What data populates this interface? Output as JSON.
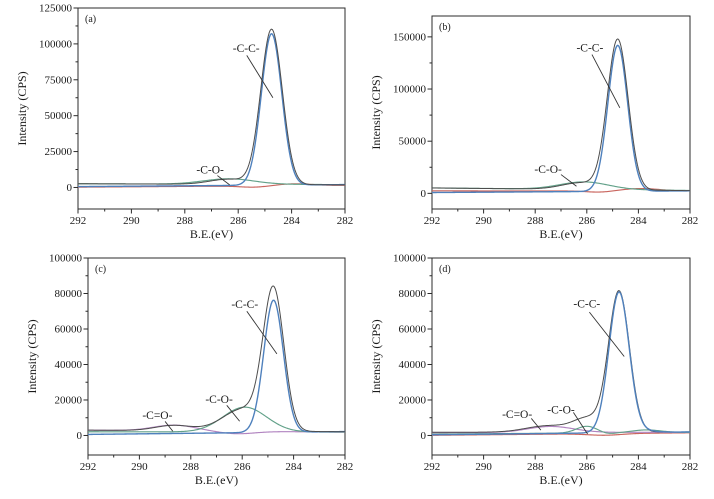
{
  "figure": {
    "background": "#ffffff",
    "axis_color": "#2b2b2b",
    "annotation_line_color": "#333333"
  },
  "axes_common": {
    "xlabel": "B.E.(eV)",
    "ylabel": "Intensity（CPS）",
    "xlim": [
      292,
      282
    ],
    "xticks": [
      292,
      290,
      288,
      286,
      284,
      282
    ],
    "x_minor_step": 1,
    "x_axis_reversed": true
  },
  "chart_data": {
    "type": "line",
    "description": "Four XPS C1s spectra panels (a)-(d): intensity vs binding energy with fitted components. Series curves are linear baseline (left/right values, CPS) plus Gaussian peaks {c: center eV, a: amplitude CPS, w: FWHM eV}.",
    "panels": [
      {
        "id": "a",
        "label": "(a)",
        "ylim": [
          -15000,
          125000
        ],
        "yticks": [
          0,
          25000,
          50000,
          75000,
          100000,
          125000
        ],
        "box": {
          "x1": 78,
          "y1": 8,
          "x2": 345,
          "y2": 209
        },
        "series": [
          {
            "name": "background",
            "color": "#c9655e",
            "base": [
              200,
              1500
            ],
            "peaks": [
              {
                "c": 283.9,
                "a": 1300,
                "w": 1.5
              },
              {
                "c": 285.4,
                "a": -900,
                "w": 1.2
              }
            ]
          },
          {
            "name": "C-O",
            "color": "#62a189",
            "base": [
              2600,
              2000
            ],
            "peaks": [
              {
                "c": 286.35,
                "a": 3800,
                "w": 2.2
              }
            ]
          },
          {
            "name": "C-C",
            "color": "#4f81bd",
            "base": [
              600,
              2000
            ],
            "peaks": [
              {
                "c": 284.75,
                "a": 105500,
                "w": 0.9
              }
            ]
          },
          {
            "name": "envelope",
            "color": "#4d4d4d",
            "base": [
              2600,
              1800
            ],
            "peaks": [
              {
                "c": 286.35,
                "a": 3600,
                "w": 1.7
              },
              {
                "c": 284.75,
                "a": 108000,
                "w": 0.95
              }
            ]
          }
        ],
        "annotations": [
          {
            "text": "-C-C-",
            "x": 285.7,
            "y": 97000,
            "line": [
              285.68,
              92000,
              284.7,
              62500
            ]
          },
          {
            "text": "-C-O-",
            "x": 287.05,
            "y": 12500,
            "line": [
              286.78,
              8300,
              286.32,
              1800
            ]
          }
        ]
      },
      {
        "id": "b",
        "label": "(b)",
        "ylim": [
          -15000,
          170000
        ],
        "yticks": [
          0,
          50000,
          100000,
          150000
        ],
        "box": {
          "x1": 75,
          "y1": 16,
          "x2": 333,
          "y2": 209
        },
        "series": [
          {
            "name": "background",
            "color": "#c9655e",
            "base": [
              2400,
              2200
            ],
            "peaks": [
              {
                "c": 283.9,
                "a": 2400,
                "w": 1.7
              },
              {
                "c": 285.5,
                "a": -1200,
                "w": 1.2
              }
            ]
          },
          {
            "name": "C-O",
            "color": "#62a189",
            "base": [
              5200,
              2800
            ],
            "peaks": [
              {
                "c": 286.1,
                "a": 7200,
                "w": 2.2
              }
            ]
          },
          {
            "name": "C-C",
            "color": "#4f81bd",
            "base": [
              800,
              2400
            ],
            "peaks": [
              {
                "c": 284.8,
                "a": 140000,
                "w": 0.9
              }
            ]
          },
          {
            "name": "envelope",
            "color": "#4d4d4d",
            "base": [
              5200,
              2600
            ],
            "peaks": [
              {
                "c": 286.2,
                "a": 6500,
                "w": 1.8
              },
              {
                "c": 284.8,
                "a": 143500,
                "w": 0.95
              }
            ]
          }
        ],
        "annotations": [
          {
            "text": "-C-C-",
            "x": 285.88,
            "y": 140000,
            "line": [
              285.8,
              133000,
              284.72,
              82000
            ]
          },
          {
            "text": "-C-O-",
            "x": 287.5,
            "y": 23500,
            "line": [
              287.0,
              18000,
              286.4,
              6800
            ]
          }
        ]
      },
      {
        "id": "c",
        "label": "(c)",
        "ylim": [
          -11000,
          100000
        ],
        "yticks": [
          0,
          20000,
          40000,
          60000,
          80000,
          100000
        ],
        "box": {
          "x1": 88,
          "y1": 9,
          "x2": 345,
          "y2": 206
        },
        "series": [
          {
            "name": "C=O",
            "color": "#b184c0",
            "base": [
              3000,
              1900
            ],
            "peaks": [
              {
                "c": 288.65,
                "a": 3200,
                "w": 1.9
              },
              {
                "c": 286.2,
                "a": -1400,
                "w": 1.6
              }
            ]
          },
          {
            "name": "C-O",
            "color": "#62a189",
            "base": [
              2100,
              1900
            ],
            "peaks": [
              {
                "c": 285.9,
                "a": 14000,
                "w": 2.0
              }
            ]
          },
          {
            "name": "C-C",
            "color": "#4f81bd",
            "base": [
              600,
              2200
            ],
            "peaks": [
              {
                "c": 284.78,
                "a": 74500,
                "w": 0.9
              }
            ]
          },
          {
            "name": "envelope",
            "color": "#4d4d4d",
            "base": [
              3000,
              2100
            ],
            "peaks": [
              {
                "c": 288.65,
                "a": 3000,
                "w": 1.7
              },
              {
                "c": 285.95,
                "a": 12500,
                "w": 1.9
              },
              {
                "c": 284.78,
                "a": 77500,
                "w": 0.95
              }
            ]
          }
        ],
        "annotations": [
          {
            "text": "-C-C-",
            "x": 285.9,
            "y": 74000,
            "line": [
              285.82,
              70000,
              284.65,
              46000
            ]
          },
          {
            "text": "-C-O-",
            "x": 286.9,
            "y": 20500,
            "line": [
              286.6,
              17000,
              286.1,
              8000
            ]
          },
          {
            "text": "-C=O-",
            "x": 289.3,
            "y": 11500,
            "line": [
              289.0,
              7900,
              288.7,
              2400
            ]
          }
        ]
      },
      {
        "id": "d",
        "label": "(d)",
        "ylim": [
          -11000,
          100000
        ],
        "yticks": [
          0,
          20000,
          40000,
          60000,
          80000,
          100000
        ],
        "box": {
          "x1": 75,
          "y1": 9,
          "x2": 333,
          "y2": 206
        },
        "series": [
          {
            "name": "background",
            "color": "#c9655e",
            "base": [
              100,
              1500
            ],
            "peaks": [
              {
                "c": 285.3,
                "a": -900,
                "w": 1.5
              }
            ]
          },
          {
            "name": "C=O",
            "color": "#b184c0",
            "base": [
              1600,
              1800
            ],
            "peaks": [
              {
                "c": 287.4,
                "a": 3400,
                "w": 2.1
              }
            ]
          },
          {
            "name": "C-O",
            "color": "#62a189",
            "base": [
              800,
              1800
            ],
            "peaks": [
              {
                "c": 286.0,
                "a": 3800,
                "w": 0.95
              },
              {
                "c": 283.7,
                "a": 1500,
                "w": 1.3
              },
              {
                "c": 285.2,
                "a": -700,
                "w": 0.7
              }
            ]
          },
          {
            "name": "envelope",
            "color": "#4d4d4d",
            "base": [
              1800,
              2000
            ],
            "peaks": [
              {
                "c": 287.5,
                "a": 3600,
                "w": 2.0
              },
              {
                "c": 285.95,
                "a": 7500,
                "w": 1.3
              },
              {
                "c": 284.75,
                "a": 79000,
                "w": 0.95
              }
            ]
          },
          {
            "name": "C-C",
            "color": "#4f81bd",
            "base": [
              400,
              2000
            ],
            "peaks": [
              {
                "c": 284.75,
                "a": 79300,
                "w": 0.92
              },
              {
                "c": 283.7,
                "a": 800,
                "w": 1.0
              }
            ]
          }
        ],
        "annotations": [
          {
            "text": "-C-C-",
            "x": 286.0,
            "y": 74500,
            "line": [
              285.9,
              69500,
              284.55,
              44500
            ]
          },
          {
            "text": "-C-O-",
            "x": 287.0,
            "y": 14500,
            "line": [
              286.52,
              13000,
              285.97,
              800
            ]
          },
          {
            "text": "-C=O-",
            "x": 288.7,
            "y": 12000,
            "line": [
              288.15,
              9600,
              287.78,
              3000
            ]
          }
        ]
      }
    ]
  }
}
